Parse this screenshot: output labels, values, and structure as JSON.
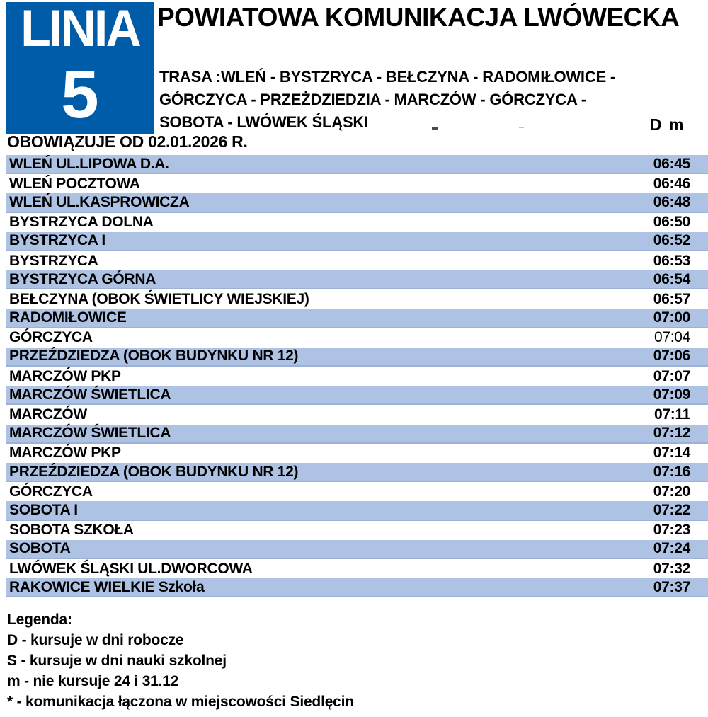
{
  "line_badge": {
    "label": "LINIA",
    "number": "5"
  },
  "header": {
    "title": "POWIATOWA KOMUNIKACJA LWÓWECKA",
    "route_line_1": "TRASA :WLEŃ - BYSTZRYCA - BEŁCZYNA - RADOMIŁOWICE -",
    "route_line_2": "GÓRCZYCA - PRZEŻDZIEDZIA - MARCZÓW - GÓRCZYCA -",
    "route_line_3": "SOBOTA - LWÓWEK ŚLĄSKI",
    "column_header": "D m",
    "valid_from": "OBOWIĄZUJE OD 02.01.2026 R."
  },
  "timetable": {
    "stops": [
      {
        "name": "WLEŃ UL.LIPOWA D.A.",
        "time": "06:45",
        "highlighted": true,
        "time_bold": true
      },
      {
        "name": "WLEŃ POCZTOWA",
        "time": "06:46",
        "highlighted": false,
        "time_bold": true
      },
      {
        "name": "WLEŃ UL.KASPROWICZA",
        "time": "06:48",
        "highlighted": true,
        "time_bold": true
      },
      {
        "name": "BYSTRZYCA DOLNA",
        "time": "06:50",
        "highlighted": false,
        "time_bold": true
      },
      {
        "name": "BYSTRZYCA I",
        "time": "06:52",
        "highlighted": true,
        "time_bold": true
      },
      {
        "name": "BYSTRZYCA",
        "time": "06:53",
        "highlighted": false,
        "time_bold": true
      },
      {
        "name": "BYSTRZYCA GÓRNA",
        "time": "06:54",
        "highlighted": true,
        "time_bold": true
      },
      {
        "name": "BEŁCZYNA (OBOK ŚWIETLICY WIEJSKIEJ)",
        "time": "06:57",
        "highlighted": false,
        "time_bold": true
      },
      {
        "name": "RADOMIŁOWICE",
        "time": "07:00",
        "highlighted": true,
        "time_bold": true
      },
      {
        "name": "GÓRCZYCA",
        "time": "07:04",
        "highlighted": false,
        "time_bold": false
      },
      {
        "name": "PRZEŹDZIEDZA (OBOK BUDYNKU NR 12)",
        "time": "07:06",
        "highlighted": true,
        "time_bold": true
      },
      {
        "name": "MARCZÓW PKP",
        "time": "07:07",
        "highlighted": false,
        "time_bold": true
      },
      {
        "name": "MARCZÓW ŚWIETLICA",
        "time": "07:09",
        "highlighted": true,
        "time_bold": true
      },
      {
        "name": "MARCZÓW",
        "time": "07:11",
        "highlighted": false,
        "time_bold": true
      },
      {
        "name": "MARCZÓW ŚWIETLICA",
        "time": "07:12",
        "highlighted": true,
        "time_bold": true
      },
      {
        "name": "MARCZÓW PKP",
        "time": "07:14",
        "highlighted": false,
        "time_bold": true
      },
      {
        "name": "PRZEŹDZIEDZA (OBOK BUDYNKU NR 12)",
        "time": "07:16",
        "highlighted": true,
        "time_bold": true
      },
      {
        "name": "GÓRCZYCA",
        "time": "07:20",
        "highlighted": false,
        "time_bold": true
      },
      {
        "name": "SOBOTA I",
        "time": "07:22",
        "highlighted": true,
        "time_bold": true
      },
      {
        "name": "SOBOTA SZKOŁA",
        "time": "07:23",
        "highlighted": false,
        "time_bold": true
      },
      {
        "name": "SOBOTA",
        "time": "07:24",
        "highlighted": true,
        "time_bold": true
      },
      {
        "name": "LWÓWEK ŚLĄSKI UL.DWORCOWA",
        "time": "07:32",
        "highlighted": false,
        "time_bold": true
      },
      {
        "name": "RAKOWICE WIELKIE Szkoła",
        "time": "07:37",
        "highlighted": true,
        "time_bold": true
      }
    ]
  },
  "legend": {
    "title": "Legenda:",
    "items": [
      "D - kursuje w dni robocze",
      "S - kursuje w dni nauki szkolnej",
      "m - nie kursuje 24 i 31.12",
      "* - komunikacja łączona w miejscowości Siedlęcin"
    ]
  },
  "colors": {
    "badge_blue": "#005BA9",
    "row_blue": "#AEC3E4",
    "row_blue_edge": "#9DB1D5"
  }
}
